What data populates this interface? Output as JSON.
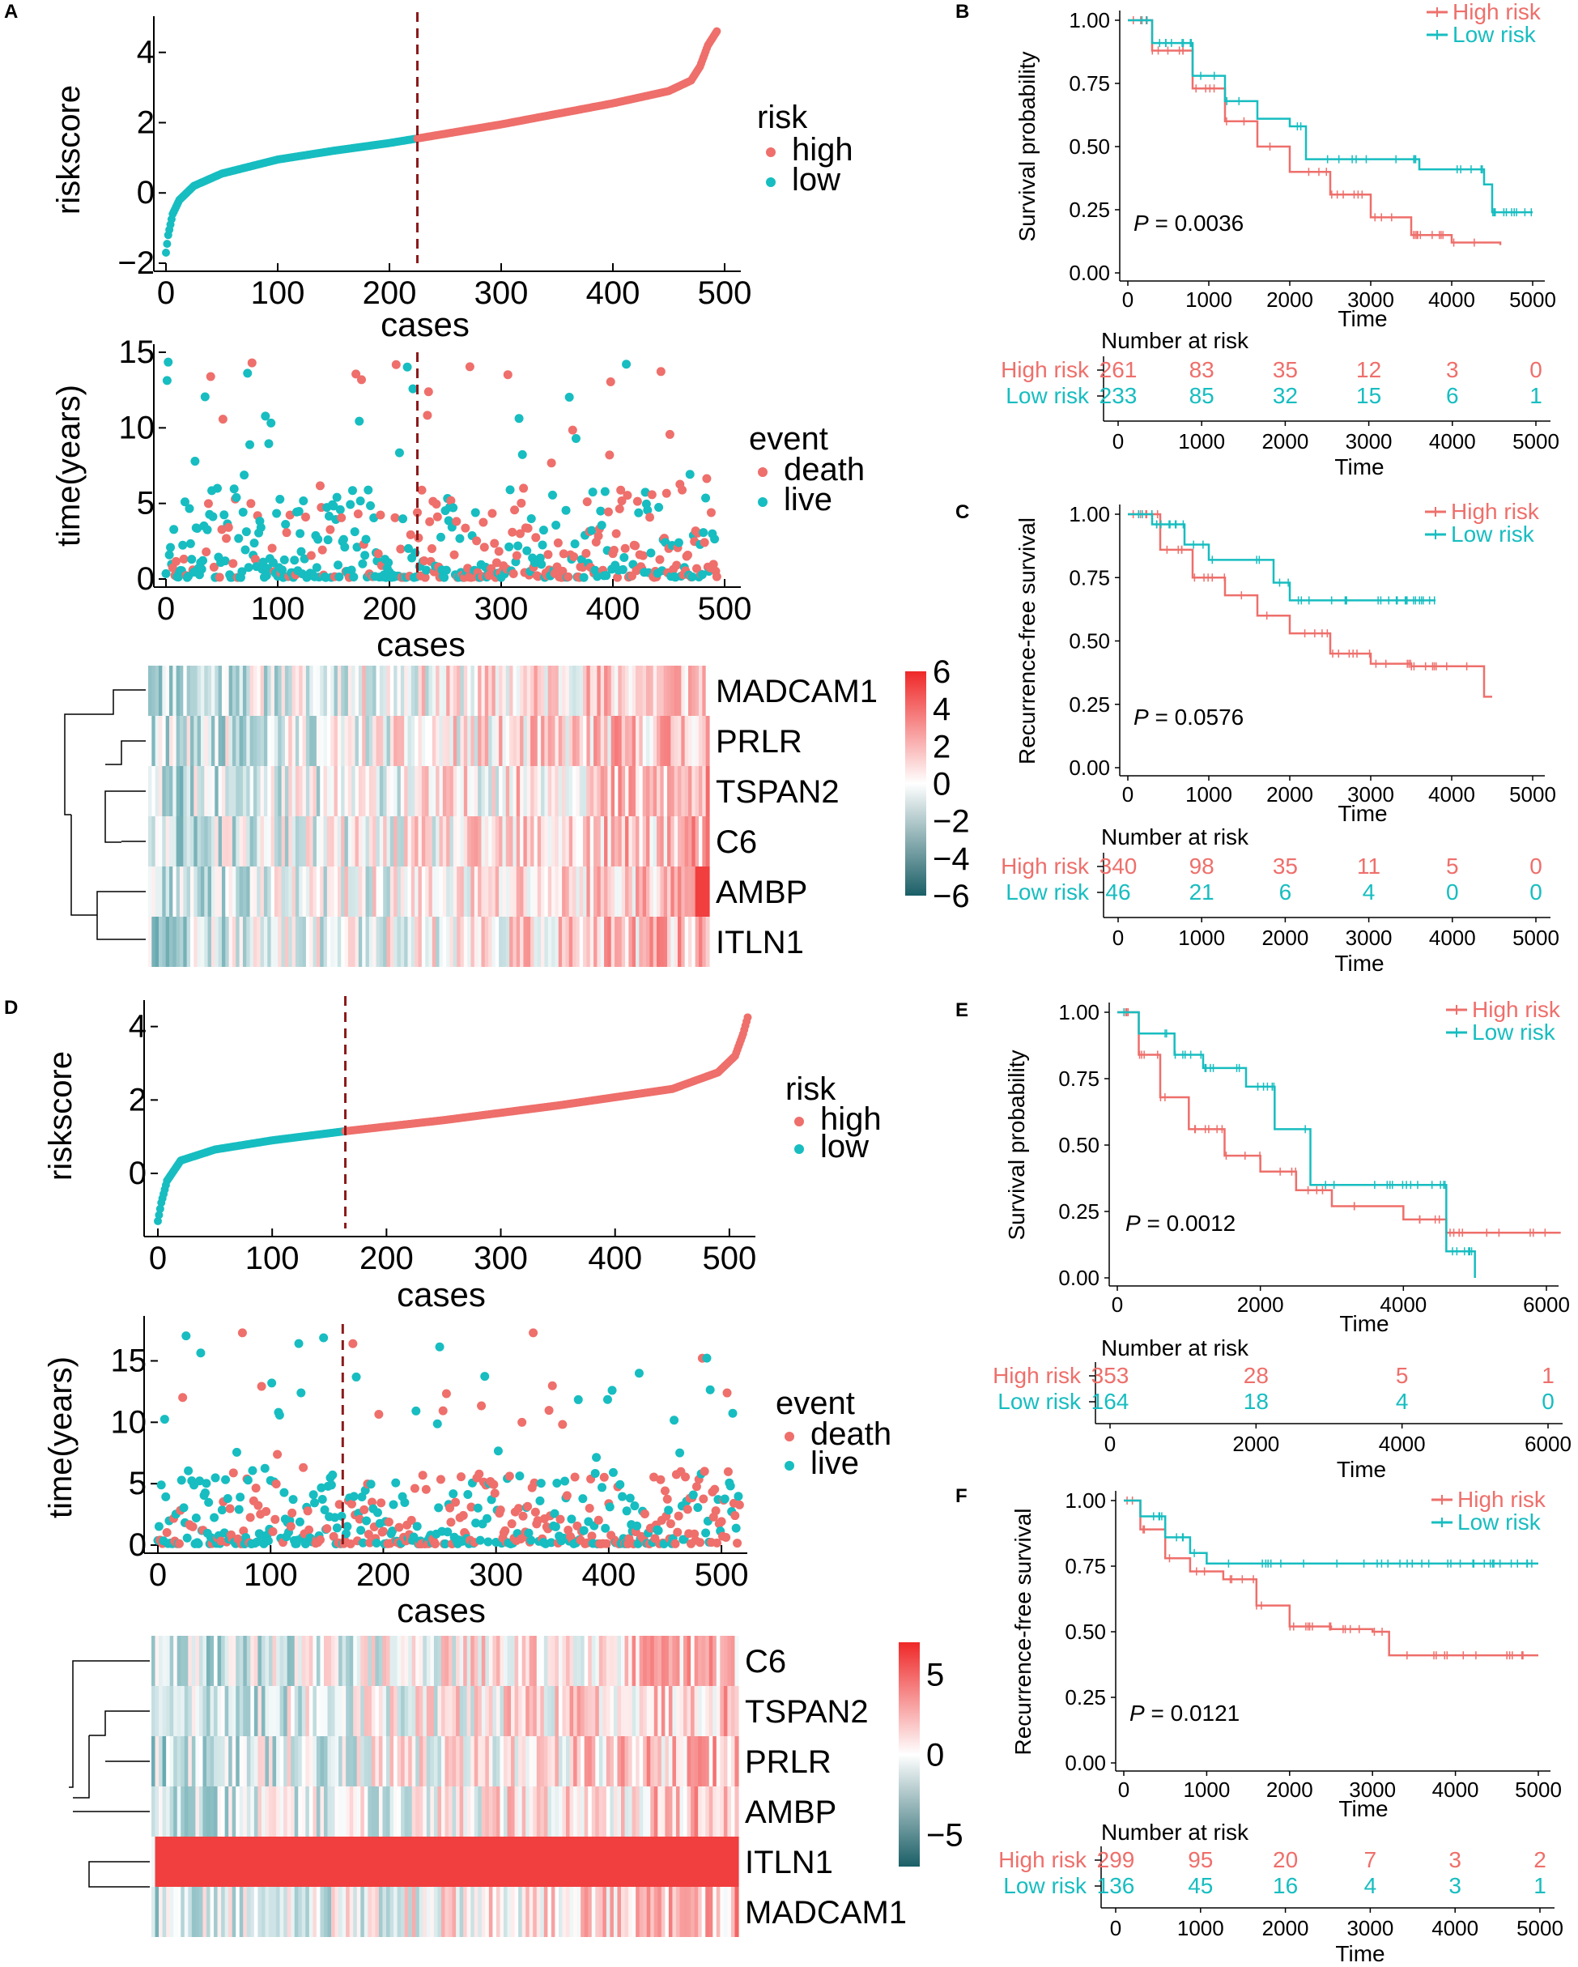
{
  "colors": {
    "high": "#EE6F6B",
    "low": "#17BDC0",
    "cutoff": "#8B1A1A",
    "axis": "#000000"
  },
  "panels": {
    "A": {
      "label": "A",
      "riskscore": {
        "ylabel": "riskscore",
        "xlabel": "cases",
        "xticks": [
          "0",
          "100",
          "200",
          "300",
          "400",
          "500"
        ],
        "yticks": [
          "−2",
          "0",
          "2",
          "4"
        ],
        "legend_title": "risk",
        "legend_items": [
          "high",
          "low"
        ]
      },
      "time": {
        "ylabel": "time(years)",
        "xlabel": "cases",
        "xticks": [
          "0",
          "100",
          "200",
          "300",
          "400",
          "500"
        ],
        "yticks": [
          "0",
          "5",
          "10",
          "15"
        ],
        "legend_title": "event",
        "legend_items": [
          "death",
          "live"
        ]
      },
      "heatmap": {
        "genes": [
          "MADCAM1",
          "PRLR",
          "TSPAN2",
          "C6",
          "AMBP",
          "ITLN1"
        ],
        "scale_ticks": [
          "6",
          "4",
          "2",
          "0",
          "−2",
          "−4",
          "−6"
        ]
      }
    },
    "B": {
      "label": "B",
      "ylabel": "Survival probability",
      "xlabel": "Time",
      "pvalue": "= 0.0036",
      "p": "P",
      "yticks": [
        "1.00",
        "0.75",
        "0.50",
        "0.25",
        "0.00"
      ],
      "xticks": [
        "0",
        "1000",
        "2000",
        "3000",
        "4000",
        "5000"
      ],
      "legend": [
        "High risk",
        "Low risk"
      ],
      "risk_title": "Number at risk",
      "risk_rows": [
        {
          "label": "High risk",
          "values": [
            "261",
            "83",
            "35",
            "12",
            "3",
            "0"
          ]
        },
        {
          "label": "Low risk",
          "values": [
            "233",
            "85",
            "32",
            "15",
            "6",
            "1"
          ]
        }
      ],
      "risk_xticks": [
        "0",
        "1000",
        "2000",
        "3000",
        "4000",
        "5000"
      ],
      "risk_xlabel": "Time"
    },
    "C": {
      "label": "C",
      "ylabel": "Recurrence-free survival",
      "xlabel": "Time",
      "pvalue": "= 0.0576",
      "p": "P",
      "yticks": [
        "1.00",
        "0.75",
        "0.50",
        "0.25",
        "0.00"
      ],
      "xticks": [
        "0",
        "1000",
        "2000",
        "3000",
        "4000",
        "5000"
      ],
      "legend": [
        "High risk",
        "Low risk"
      ],
      "risk_title": "Number at risk",
      "risk_rows": [
        {
          "label": "High risk",
          "values": [
            "340",
            "98",
            "35",
            "11",
            "5",
            "0"
          ]
        },
        {
          "label": "Low risk",
          "values": [
            "46",
            "21",
            "6",
            "4",
            "0",
            "0"
          ]
        }
      ],
      "risk_xticks": [
        "0",
        "1000",
        "2000",
        "3000",
        "4000",
        "5000"
      ],
      "risk_xlabel": "Time"
    },
    "D": {
      "label": "D",
      "riskscore": {
        "ylabel": "riskscore",
        "xlabel": "cases",
        "xticks": [
          "0",
          "100",
          "200",
          "300",
          "400",
          "500"
        ],
        "yticks": [
          "0",
          "2",
          "4"
        ],
        "legend_title": "risk",
        "legend_items": [
          "high",
          "low"
        ]
      },
      "time": {
        "ylabel": "time(years)",
        "xlabel": "cases",
        "xticks": [
          "0",
          "100",
          "200",
          "300",
          "400",
          "500"
        ],
        "yticks": [
          "0",
          "5",
          "10",
          "15"
        ],
        "legend_title": "event",
        "legend_items": [
          "death",
          "live"
        ]
      },
      "heatmap": {
        "genes": [
          "C6",
          "TSPAN2",
          "PRLR",
          "AMBP",
          "ITLN1",
          "MADCAM1"
        ],
        "scale_ticks": [
          "5",
          "0",
          "−5"
        ]
      }
    },
    "E": {
      "label": "E",
      "ylabel": "Survival probability",
      "xlabel": "Time",
      "pvalue": "= 0.0012",
      "p": "P",
      "yticks": [
        "1.00",
        "0.75",
        "0.50",
        "0.25",
        "0.00"
      ],
      "xticks": [
        "0",
        "2000",
        "4000",
        "6000"
      ],
      "legend": [
        "High risk",
        "Low risk"
      ],
      "risk_title": "Number at risk",
      "risk_rows": [
        {
          "label": "High risk",
          "values": [
            "353",
            "28",
            "5",
            "1"
          ]
        },
        {
          "label": "Low risk",
          "values": [
            "164",
            "18",
            "4",
            "0"
          ]
        }
      ],
      "risk_xticks": [
        "0",
        "2000",
        "4000",
        "6000"
      ],
      "risk_xlabel": "Time"
    },
    "F": {
      "label": "F",
      "ylabel": "Recurrence-free survival",
      "xlabel": "Time",
      "pvalue": "= 0.0121",
      "p": "P",
      "yticks": [
        "1.00",
        "0.75",
        "0.50",
        "0.25",
        "0.00"
      ],
      "xticks": [
        "0",
        "1000",
        "2000",
        "3000",
        "4000",
        "5000"
      ],
      "legend": [
        "High risk",
        "Low risk"
      ],
      "risk_title": "Number at risk",
      "risk_rows": [
        {
          "label": "High risk",
          "values": [
            "299",
            "95",
            "20",
            "7",
            "3",
            "2"
          ]
        },
        {
          "label": "Low risk",
          "values": [
            "136",
            "45",
            "16",
            "4",
            "3",
            "1"
          ]
        }
      ],
      "risk_xticks": [
        "0",
        "1000",
        "2000",
        "3000",
        "4000",
        "5000"
      ],
      "risk_xlabel": "Time"
    }
  },
  "chart_data": [
    {
      "panel": "A",
      "type": "scatter",
      "title": "riskscore",
      "xlabel": "cases",
      "ylabel": "riskscore",
      "xlim": [
        0,
        500
      ],
      "ylim": [
        -2,
        4.8
      ],
      "n_cases": 494,
      "cutoff_case": 225,
      "curve_knots": [
        [
          0,
          -1.7
        ],
        [
          2,
          -1.2
        ],
        [
          6,
          -0.6
        ],
        [
          12,
          -0.2
        ],
        [
          25,
          0.2
        ],
        [
          50,
          0.55
        ],
        [
          100,
          0.95
        ],
        [
          150,
          1.2
        ],
        [
          200,
          1.42
        ],
        [
          225,
          1.55
        ],
        [
          300,
          1.95
        ],
        [
          400,
          2.55
        ],
        [
          450,
          2.9
        ],
        [
          470,
          3.2
        ],
        [
          478,
          3.6
        ],
        [
          485,
          4.2
        ],
        [
          493,
          4.6
        ]
      ]
    },
    {
      "panel": "A",
      "type": "scatter",
      "title": "time(years)",
      "xlabel": "cases",
      "ylabel": "time(years)",
      "xlim": [
        0,
        500
      ],
      "ylim": [
        0,
        15
      ],
      "cutoff_case": 225,
      "series": [
        {
          "name": "death"
        },
        {
          "name": "live"
        }
      ]
    },
    {
      "panel": "A",
      "type": "heatmap",
      "rows": [
        "MADCAM1",
        "PRLR",
        "TSPAN2",
        "C6",
        "AMBP",
        "ITLN1"
      ],
      "scale": [
        -6,
        6
      ]
    },
    {
      "panel": "B",
      "type": "line",
      "xlabel": "Time",
      "ylabel": "Survival probability",
      "xlim": [
        0,
        5000
      ],
      "ylim": [
        0,
        1
      ],
      "p_value": 0.0036,
      "series": [
        {
          "name": "High risk",
          "x": [
            0,
            300,
            800,
            1200,
            1600,
            2000,
            2500,
            3000,
            3500,
            4000,
            4600
          ],
          "y": [
            1.0,
            0.88,
            0.73,
            0.6,
            0.5,
            0.4,
            0.31,
            0.22,
            0.15,
            0.12,
            0.11
          ]
        },
        {
          "name": "Low risk",
          "x": [
            0,
            300,
            800,
            1200,
            1600,
            2000,
            2200,
            3500,
            3600,
            4400,
            4500,
            5000
          ],
          "y": [
            1.0,
            0.91,
            0.78,
            0.68,
            0.61,
            0.58,
            0.45,
            0.45,
            0.41,
            0.35,
            0.24,
            0.24
          ]
        }
      ]
    },
    {
      "panel": "C",
      "type": "line",
      "xlabel": "Time",
      "ylabel": "Recurrence-free survival",
      "xlim": [
        0,
        5000
      ],
      "ylim": [
        0,
        1
      ],
      "p_value": 0.0576,
      "series": [
        {
          "name": "High risk",
          "x": [
            0,
            400,
            800,
            1200,
            1600,
            2000,
            2500,
            3000,
            3500,
            4300,
            4400,
            4500
          ],
          "y": [
            1.0,
            0.86,
            0.75,
            0.68,
            0.6,
            0.53,
            0.45,
            0.41,
            0.4,
            0.4,
            0.28,
            0.28
          ]
        },
        {
          "name": "Low risk",
          "x": [
            0,
            300,
            700,
            1000,
            1800,
            2000,
            3800
          ],
          "y": [
            1.0,
            0.96,
            0.88,
            0.82,
            0.73,
            0.66,
            0.66
          ]
        }
      ]
    },
    {
      "panel": "D",
      "type": "scatter",
      "title": "riskscore",
      "xlabel": "cases",
      "ylabel": "riskscore",
      "xlim": [
        0,
        510
      ],
      "ylim": [
        -1.5,
        4.5
      ],
      "n_cases": 517,
      "cutoff_case": 164,
      "curve_knots": [
        [
          0,
          -1.3
        ],
        [
          3,
          -0.8
        ],
        [
          8,
          -0.2
        ],
        [
          20,
          0.35
        ],
        [
          50,
          0.65
        ],
        [
          100,
          0.9
        ],
        [
          164,
          1.15
        ],
        [
          250,
          1.45
        ],
        [
          350,
          1.85
        ],
        [
          450,
          2.3
        ],
        [
          490,
          2.75
        ],
        [
          505,
          3.2
        ],
        [
          512,
          3.8
        ],
        [
          516,
          4.25
        ]
      ]
    },
    {
      "panel": "D",
      "type": "scatter",
      "title": "time(years)",
      "xlabel": "cases",
      "ylabel": "time(years)",
      "xlim": [
        0,
        510
      ],
      "ylim": [
        0,
        18
      ],
      "cutoff_case": 164,
      "series": [
        {
          "name": "death"
        },
        {
          "name": "live"
        }
      ]
    },
    {
      "panel": "D",
      "type": "heatmap",
      "rows": [
        "C6",
        "TSPAN2",
        "PRLR",
        "AMBP",
        "ITLN1",
        "MADCAM1"
      ],
      "scale": [
        -7,
        7
      ]
    },
    {
      "panel": "E",
      "type": "line",
      "xlabel": "Time",
      "ylabel": "Survival probability",
      "xlim": [
        0,
        6000
      ],
      "ylim": [
        0,
        1
      ],
      "p_value": 0.0012,
      "series": [
        {
          "name": "High risk",
          "x": [
            0,
            300,
            600,
            1000,
            1500,
            2000,
            2500,
            3000,
            4000,
            4600,
            6200
          ],
          "y": [
            1.0,
            0.84,
            0.68,
            0.56,
            0.46,
            0.4,
            0.33,
            0.27,
            0.22,
            0.17,
            0.17
          ]
        },
        {
          "name": "Low risk",
          "x": [
            0,
            300,
            800,
            1200,
            1800,
            2200,
            2700,
            3800,
            4400,
            4600,
            4900,
            5000
          ],
          "y": [
            1.0,
            0.92,
            0.84,
            0.79,
            0.72,
            0.56,
            0.35,
            0.35,
            0.35,
            0.1,
            0.1,
            0.0
          ]
        }
      ]
    },
    {
      "panel": "F",
      "type": "line",
      "xlabel": "Time",
      "ylabel": "Recurrence-free survival",
      "xlim": [
        0,
        5000
      ],
      "ylim": [
        0,
        1
      ],
      "p_value": 0.0121,
      "series": [
        {
          "name": "High risk",
          "x": [
            0,
            200,
            500,
            800,
            1200,
            1600,
            2000,
            2500,
            3000,
            3200,
            5000
          ],
          "y": [
            1.0,
            0.89,
            0.78,
            0.73,
            0.7,
            0.6,
            0.52,
            0.51,
            0.5,
            0.41,
            0.41
          ]
        },
        {
          "name": "Low risk",
          "x": [
            0,
            200,
            500,
            800,
            1000,
            5000
          ],
          "y": [
            1.0,
            0.94,
            0.86,
            0.8,
            0.76,
            0.76
          ]
        }
      ]
    }
  ]
}
